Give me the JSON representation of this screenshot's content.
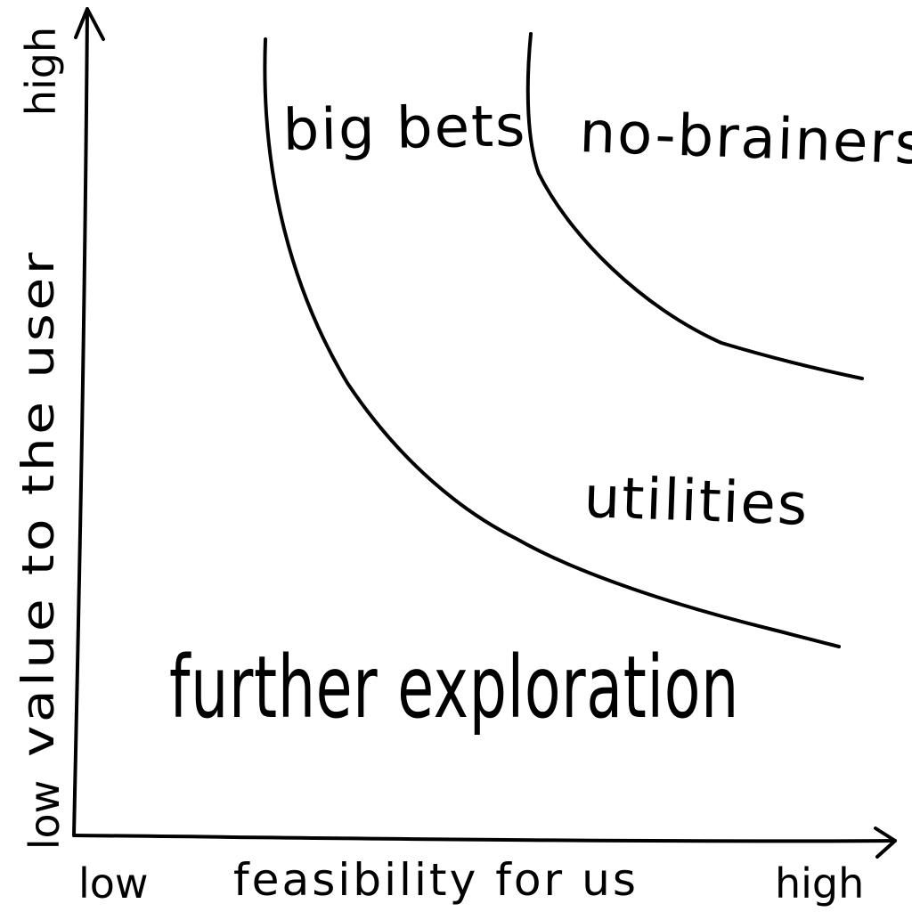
{
  "axes": {
    "x": {
      "label": "feasibility for us",
      "low": "low",
      "high": "high"
    },
    "y": {
      "label": "value to the user",
      "low": "low",
      "high": "high"
    }
  },
  "regions": {
    "big_bets": "big bets",
    "no_brainers": "no-brainers",
    "utilities": "utilities",
    "further_exploration": "further exploration"
  }
}
